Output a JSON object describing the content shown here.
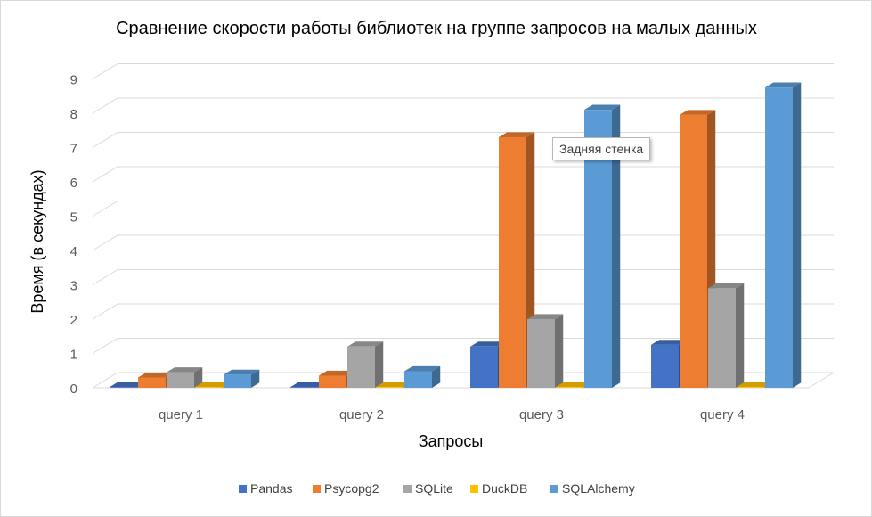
{
  "chart_data": {
    "type": "bar",
    "title": "Сравнение скорости работы библиотек на группе запросов на малых данных",
    "xlabel": "Запросы",
    "ylabel": "Время (в секундах)",
    "ylim": [
      0,
      9
    ],
    "yticks": [
      "0",
      "1",
      "2",
      "3",
      "4",
      "5",
      "6",
      "7",
      "8",
      "9"
    ],
    "grid": true,
    "legend_position": "bottom",
    "categories": [
      "query 1",
      "query 2",
      "query 3",
      "query 4"
    ],
    "series": [
      {
        "name": "Pandas",
        "color": "#4472C4",
        "values": [
          0.02,
          0.02,
          1.2,
          1.25
        ]
      },
      {
        "name": "Psycopg2",
        "color": "#ED7D31",
        "values": [
          0.3,
          0.35,
          7.3,
          7.95
        ]
      },
      {
        "name": "SQLite",
        "color": "#A5A5A5",
        "values": [
          0.45,
          1.2,
          2.0,
          2.9
        ]
      },
      {
        "name": "DuckDB",
        "color": "#FFC000",
        "values": [
          0.02,
          0.02,
          0.02,
          0.02
        ]
      },
      {
        "name": "SQLAlchemy",
        "color": "#5B9BD5",
        "values": [
          0.38,
          0.48,
          8.1,
          8.75
        ]
      }
    ]
  },
  "tooltip": {
    "text": "Задняя стенка"
  }
}
